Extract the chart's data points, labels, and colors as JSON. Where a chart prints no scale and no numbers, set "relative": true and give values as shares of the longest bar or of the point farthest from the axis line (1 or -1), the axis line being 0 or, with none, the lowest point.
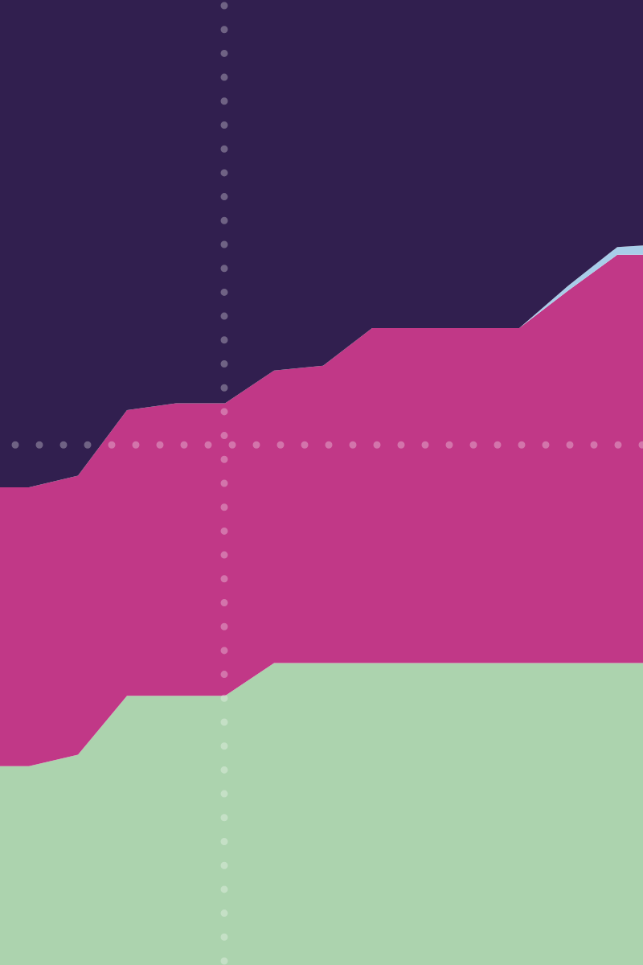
{
  "chart_data": {
    "type": "area",
    "stacked": true,
    "relative": true,
    "categories": [
      null,
      null,
      null,
      null,
      null,
      null,
      null,
      null,
      null,
      null,
      null,
      null,
      null,
      null,
      null
    ],
    "series": [
      {
        "color": "#acd3ae",
        "values": [
          0.206,
          0.206,
          0.218,
          0.279,
          0.279,
          0.279,
          0.313,
          0.313,
          0.313,
          0.313,
          0.313,
          0.313,
          0.313,
          0.313,
          0.313
        ]
      },
      {
        "color": "#c13887",
        "values": [
          0.289,
          0.289,
          0.289,
          0.296,
          0.303,
          0.303,
          0.303,
          0.308,
          0.347,
          0.347,
          0.347,
          0.347,
          0.386,
          0.423,
          0.423
        ]
      },
      {
        "color": "#a8cde9",
        "values": [
          0,
          0,
          0,
          0,
          0,
          0,
          0,
          0,
          0,
          0,
          0,
          0,
          0.005,
          0.008,
          0.011
        ]
      },
      {
        "color": "#311f4f",
        "values": [
          0.505,
          0.505,
          0.493,
          0.425,
          0.418,
          0.418,
          0.384,
          0.379,
          0.34,
          0.34,
          0.34,
          0.34,
          0.296,
          0.256,
          0.253
        ]
      }
    ],
    "ref_lines": [
      {
        "axis": "y",
        "value": 0.539,
        "color": "#ffffff",
        "line_style": "dotted"
      }
    ]
  }
}
